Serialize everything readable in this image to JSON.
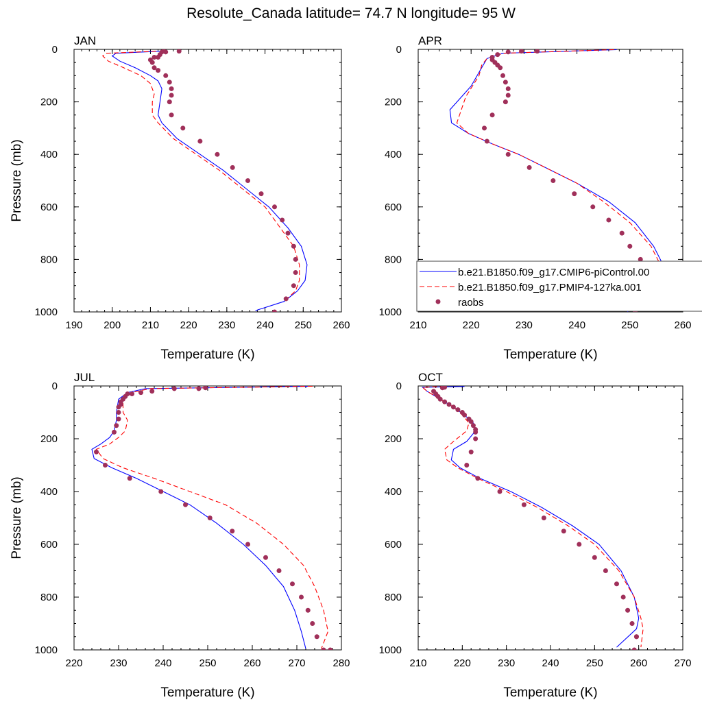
{
  "title": "Resolute_Canada  latitude= 74.7 N longitude= 95 W",
  "colors": {
    "model_a": "#0000ff",
    "model_b": "#ff0000",
    "raobs": "#a0305a",
    "axes": "#000000"
  },
  "legend": {
    "placement": "inside APR panel, lower-right, extends past panel edge",
    "entries": [
      {
        "label": "b.e21.B1850.f09_g17.CMIP6-piControl.00",
        "style": "solid",
        "color": "#0000ff"
      },
      {
        "label": "b.e21.B1850.f09_g17.PMIP4-127ka.001",
        "style": "dashed",
        "color": "#ff0000"
      },
      {
        "label": "raobs",
        "style": "marker",
        "color": "#a0305a"
      }
    ]
  },
  "chart_data": [
    {
      "type": "line",
      "panel": "JAN",
      "xlabel": "Temperature (K)",
      "ylabel": "Pressure (mb)",
      "xlim": [
        190,
        260
      ],
      "ylim": [
        0,
        1000
      ],
      "y_inverted": true,
      "xticks": [
        190,
        200,
        210,
        220,
        230,
        240,
        250,
        260
      ],
      "yticks": [
        0,
        200,
        400,
        600,
        800,
        1000
      ],
      "series": [
        {
          "name": "b.e21.B1850.f09_g17.CMIP6-piControl.00",
          "kind": "solid",
          "x": [
            212.5,
            201,
            200,
            202,
            206,
            210,
            212,
            213,
            212.5,
            212,
            213,
            217,
            223,
            229,
            235,
            241,
            246,
            249.5,
            251,
            250.5,
            248.5,
            245,
            237.5
          ],
          "y": [
            7,
            15,
            25,
            45,
            70,
            100,
            120,
            150,
            200,
            250,
            280,
            340,
            400,
            460,
            530,
            600,
            680,
            750,
            820,
            880,
            920,
            960,
            995
          ]
        },
        {
          "name": "b.e21.B1850.f09_g17.PMIP4-127ka.001",
          "kind": "dashed",
          "x": [
            211.5,
            198.5,
            197.5,
            199,
            203,
            207.5,
            210,
            211,
            210.5,
            210.5,
            212,
            216,
            222,
            228,
            234,
            240,
            244,
            247.5,
            249,
            249,
            248,
            245
          ],
          "y": [
            7,
            15,
            25,
            45,
            70,
            100,
            130,
            170,
            200,
            250,
            280,
            340,
            400,
            460,
            530,
            600,
            680,
            750,
            820,
            880,
            920,
            960
          ]
        },
        {
          "name": "raobs",
          "kind": "marker",
          "x": [
            217.5,
            213.5,
            213,
            214,
            212.5,
            212,
            211,
            210,
            210.5,
            211,
            212,
            214,
            215,
            215.5,
            215.5,
            215,
            215.5,
            218.5,
            223,
            227.5,
            231.5,
            235.5,
            239,
            242.5,
            244.5,
            246,
            247.5,
            248,
            248,
            247.5,
            245.5,
            242.5
          ],
          "y": [
            7,
            7,
            10,
            10,
            20,
            30,
            30,
            40,
            50,
            70,
            80,
            100,
            125,
            150,
            175,
            200,
            250,
            300,
            350,
            400,
            450,
            500,
            550,
            600,
            650,
            700,
            750,
            800,
            850,
            900,
            950,
            1000
          ]
        }
      ]
    },
    {
      "type": "line",
      "panel": "APR",
      "xlabel": "Temperature (K)",
      "ylabel": "",
      "xlim": [
        210,
        260
      ],
      "ylim": [
        0,
        1000
      ],
      "y_inverted": true,
      "xticks": [
        210,
        220,
        230,
        240,
        250,
        260
      ],
      "yticks": [
        0,
        200,
        400,
        600,
        800,
        1000
      ],
      "series": [
        {
          "name": "b.e21.B1850.f09_g17.CMIP6-piControl.00",
          "kind": "solid",
          "x": [
            247.5,
            226,
            223,
            222,
            220,
            216,
            216.3,
            219.5,
            224,
            229,
            234,
            240,
            246,
            251,
            254.5,
            256.5,
            257,
            256,
            249.5
          ],
          "y": [
            1,
            15,
            35,
            70,
            140,
            230,
            280,
            320,
            360,
            400,
            450,
            510,
            580,
            660,
            750,
            830,
            880,
            920,
            1000
          ]
        },
        {
          "name": "b.e21.B1850.f09_g17.PMIP4-127ka.001",
          "kind": "dashed",
          "x": [
            247,
            226,
            223,
            222,
            221.5,
            219,
            217.3,
            219.5,
            224,
            229,
            234,
            240,
            245,
            250,
            254,
            256,
            256.5,
            256,
            254
          ],
          "y": [
            1,
            15,
            35,
            60,
            100,
            180,
            280,
            320,
            360,
            400,
            450,
            510,
            580,
            660,
            750,
            830,
            880,
            920,
            960
          ]
        },
        {
          "name": "raobs",
          "kind": "marker",
          "x": [
            227,
            229.5,
            232.5,
            225,
            224,
            224,
            224.5,
            225,
            225.5,
            226,
            226.5,
            227,
            227,
            226.5,
            224,
            222.5,
            223,
            227,
            231,
            235.5,
            239.5,
            243,
            246,
            248.5,
            250,
            252,
            253.5,
            254,
            253.5,
            253.5,
            251
          ],
          "y": [
            10,
            7,
            7,
            20,
            30,
            40,
            50,
            60,
            70,
            100,
            125,
            150,
            175,
            200,
            250,
            300,
            350,
            400,
            450,
            500,
            550,
            600,
            650,
            700,
            750,
            800,
            850,
            900,
            925,
            950,
            1000
          ]
        }
      ]
    },
    {
      "type": "line",
      "panel": "JUL",
      "xlabel": "Temperature (K)",
      "ylabel": "Pressure (mb)",
      "xlim": [
        220,
        280
      ],
      "ylim": [
        0,
        1000
      ],
      "y_inverted": true,
      "xticks": [
        220,
        230,
        240,
        250,
        260,
        270,
        280
      ],
      "yticks": [
        0,
        200,
        400,
        600,
        800,
        1000
      ],
      "series": [
        {
          "name": "b.e21.B1850.f09_g17.CMIP6-piControl.00",
          "kind": "solid",
          "x": [
            273,
            236,
            232,
            230,
            229.5,
            229.5,
            229,
            228,
            226,
            224,
            224.5,
            228.5,
            234,
            240,
            246,
            252,
            258,
            263,
            267,
            269.5,
            271,
            272
          ],
          "y": [
            1,
            10,
            25,
            50,
            100,
            130,
            170,
            195,
            220,
            240,
            275,
            310,
            350,
            400,
            450,
            520,
            600,
            680,
            760,
            850,
            930,
            995
          ]
        },
        {
          "name": "b.e21.B1850.f09_g17.PMIP4-127ka.001",
          "kind": "dashed",
          "x": [
            273.5,
            237,
            233,
            231,
            231,
            232,
            231.5,
            230,
            228,
            225,
            226.5,
            231,
            238,
            246,
            254,
            261,
            267,
            271.5,
            274,
            276,
            277,
            275.5
          ],
          "y": [
            1,
            10,
            25,
            50,
            100,
            130,
            170,
            195,
            220,
            240,
            275,
            310,
            350,
            400,
            450,
            520,
            600,
            680,
            760,
            850,
            930,
            995
          ]
        },
        {
          "name": "raobs",
          "kind": "marker",
          "x": [
            249.5,
            248,
            242.5,
            237.5,
            235,
            233,
            232,
            231.5,
            231,
            230.5,
            230.5,
            230,
            230,
            230,
            229.5,
            229,
            225,
            227,
            232.5,
            239.5,
            245,
            250.5,
            255.5,
            259,
            263,
            266,
            269,
            271,
            272.5,
            273.5,
            274.5,
            276,
            277.5
          ],
          "y": [
            7,
            10,
            10,
            20,
            25,
            30,
            30,
            40,
            50,
            60,
            70,
            80,
            100,
            125,
            150,
            175,
            250,
            300,
            350,
            400,
            450,
            500,
            550,
            600,
            650,
            700,
            750,
            800,
            850,
            900,
            950,
            1000,
            1000
          ]
        }
      ]
    },
    {
      "type": "line",
      "panel": "OCT",
      "xlabel": "Temperature (K)",
      "ylabel": "",
      "xlim": [
        210,
        270
      ],
      "ylim": [
        0,
        1000
      ],
      "y_inverted": true,
      "xticks": [
        210,
        220,
        230,
        240,
        250,
        260,
        270
      ],
      "yticks": [
        0,
        200,
        400,
        600,
        800,
        1000
      ],
      "series": [
        {
          "name": "b.e21.B1850.f09_g17.CMIP6-piControl.00",
          "kind": "solid",
          "x": [
            220.5,
            211,
            212,
            215,
            218,
            220.5,
            222.5,
            223,
            221,
            218,
            217.5,
            219.5,
            224,
            231,
            238,
            245,
            251,
            256,
            259,
            260,
            259.5,
            255
          ],
          "y": [
            2,
            5,
            20,
            50,
            80,
            110,
            140,
            170,
            210,
            240,
            280,
            310,
            350,
            400,
            460,
            530,
            600,
            700,
            800,
            880,
            920,
            990
          ]
        },
        {
          "name": "b.e21.B1850.f09_g17.PMIP4-127ka.001",
          "kind": "dashed",
          "x": [
            216,
            211,
            212,
            215,
            218,
            220,
            221.5,
            221,
            218,
            216,
            216.5,
            219,
            223.5,
            230,
            237,
            244,
            250,
            255.5,
            259,
            260.5,
            261,
            260.5
          ],
          "y": [
            2,
            5,
            20,
            50,
            80,
            110,
            140,
            170,
            210,
            240,
            280,
            310,
            350,
            400,
            460,
            530,
            600,
            700,
            800,
            880,
            920,
            990
          ]
        },
        {
          "name": "raobs",
          "kind": "marker",
          "x": [
            215.5,
            216,
            213.5,
            214,
            214.5,
            215,
            216,
            217,
            218,
            219,
            220,
            220.5,
            221.5,
            222,
            222.5,
            223,
            223,
            223,
            222,
            221,
            223.5,
            228.5,
            234,
            238.5,
            243,
            246.5,
            250,
            252.5,
            255,
            256.5,
            257.5,
            258.5,
            259.5,
            259.5,
            259
          ],
          "y": [
            7,
            5,
            20,
            30,
            40,
            50,
            60,
            70,
            80,
            90,
            100,
            110,
            125,
            135,
            150,
            165,
            175,
            200,
            250,
            300,
            350,
            400,
            450,
            500,
            550,
            600,
            650,
            700,
            750,
            800,
            850,
            900,
            950,
            950,
            1000
          ]
        }
      ]
    }
  ]
}
